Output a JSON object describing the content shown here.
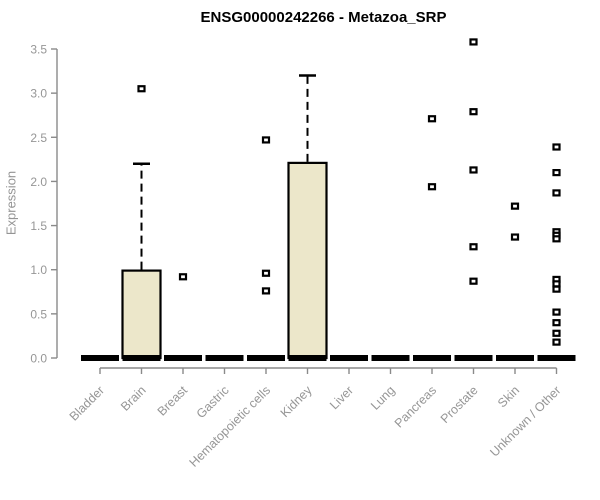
{
  "chart_data": {
    "type": "boxplot",
    "title": "ENSG00000242266 - Metazoa_SRP",
    "ylabel": "Expression",
    "xlabel": "",
    "ylim": [
      0,
      3.5
    ],
    "ytick_labels": [
      "0.0",
      "0.5",
      "1.0",
      "1.5",
      "2.0",
      "2.5",
      "3.0",
      "3.5"
    ],
    "grid": false,
    "legend": "none",
    "categories": [
      "Bladder",
      "Brain",
      "Breast",
      "Gastric",
      "Hematopoietic cells",
      "Kidney",
      "Liver",
      "Lung",
      "Pancreas",
      "Prostate",
      "Skin",
      "Unknown / Other"
    ],
    "colors": {
      "box_fill": "#ece7ca",
      "box_border": "#000000",
      "median": "#000000",
      "axis": "#8a8a8a",
      "tick_text": "#969696",
      "title_text": "#000000",
      "outlier_fill": "#ffffff"
    },
    "boxes": [
      {
        "category": "Bladder",
        "whisker_low": 0,
        "q1": 0,
        "median": 0,
        "q3": 0,
        "whisker_high": 0,
        "outliers": []
      },
      {
        "category": "Brain",
        "whisker_low": 0,
        "q1": 0,
        "median": 0,
        "q3": 0.99,
        "whisker_high": 2.2,
        "outliers": [
          3.05
        ]
      },
      {
        "category": "Breast",
        "whisker_low": 0,
        "q1": 0,
        "median": 0,
        "q3": 0,
        "whisker_high": 0,
        "outliers": [
          0.92
        ]
      },
      {
        "category": "Gastric",
        "whisker_low": 0,
        "q1": 0,
        "median": 0,
        "q3": 0,
        "whisker_high": 0,
        "outliers": []
      },
      {
        "category": "Hematopoietic cells",
        "whisker_low": 0,
        "q1": 0,
        "median": 0,
        "q3": 0,
        "whisker_high": 0,
        "outliers": [
          2.47,
          0.96,
          0.76
        ]
      },
      {
        "category": "Kidney",
        "whisker_low": 0,
        "q1": 0,
        "median": 0,
        "q3": 2.21,
        "whisker_high": 3.2,
        "outliers": []
      },
      {
        "category": "Liver",
        "whisker_low": 0,
        "q1": 0,
        "median": 0,
        "q3": 0,
        "whisker_high": 0,
        "outliers": []
      },
      {
        "category": "Lung",
        "whisker_low": 0,
        "q1": 0,
        "median": 0,
        "q3": 0,
        "whisker_high": 0,
        "outliers": []
      },
      {
        "category": "Pancreas",
        "whisker_low": 0,
        "q1": 0,
        "median": 0,
        "q3": 0,
        "whisker_high": 0,
        "outliers": [
          2.71,
          1.94
        ]
      },
      {
        "category": "Prostate",
        "whisker_low": 0,
        "q1": 0,
        "median": 0,
        "q3": 0,
        "whisker_high": 0,
        "outliers": [
          3.58,
          2.79,
          2.13,
          1.26,
          0.87
        ]
      },
      {
        "category": "Skin",
        "whisker_low": 0,
        "q1": 0,
        "median": 0,
        "q3": 0,
        "whisker_high": 0,
        "outliers": [
          1.72,
          1.37
        ]
      },
      {
        "category": "Unknown / Other",
        "whisker_low": 0,
        "q1": 0,
        "median": 0,
        "q3": 0,
        "whisker_high": 0,
        "outliers": [
          2.39,
          2.1,
          1.87,
          1.43,
          1.39,
          1.35,
          0.89,
          0.84,
          0.78,
          0.52,
          0.4,
          0.28,
          0.18
        ]
      }
    ]
  }
}
